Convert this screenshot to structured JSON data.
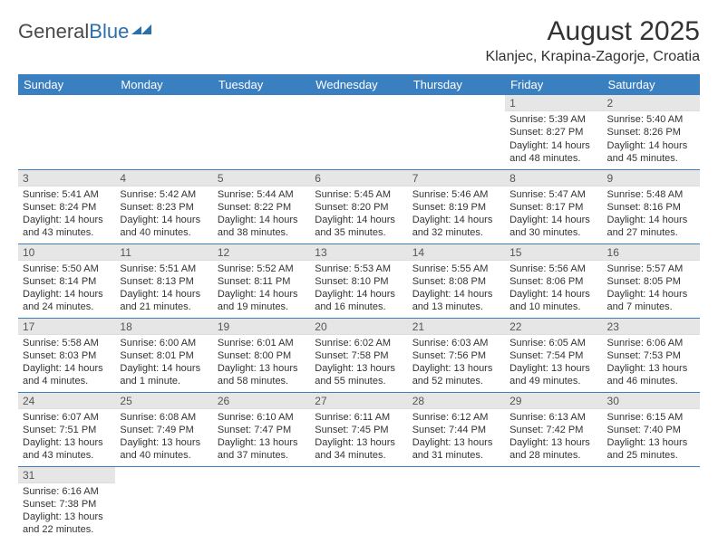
{
  "logo": {
    "text1": "General",
    "text2": "Blue"
  },
  "title": "August 2025",
  "location": "Klanjec, Krapina-Zagorje, Croatia",
  "colors": {
    "header_bg": "#3a7fc0",
    "header_fg": "#ffffff",
    "daynum_bg": "#e6e6e6",
    "row_divider": "#3a7fc0",
    "logo_gray": "#4a4a4a",
    "logo_blue": "#2b6fab",
    "text": "#333333"
  },
  "weekdays": [
    "Sunday",
    "Monday",
    "Tuesday",
    "Wednesday",
    "Thursday",
    "Friday",
    "Saturday"
  ],
  "weeks": [
    [
      null,
      null,
      null,
      null,
      null,
      {
        "n": "1",
        "sr": "Sunrise: 5:39 AM",
        "ss": "Sunset: 8:27 PM",
        "d1": "Daylight: 14 hours",
        "d2": "and 48 minutes."
      },
      {
        "n": "2",
        "sr": "Sunrise: 5:40 AM",
        "ss": "Sunset: 8:26 PM",
        "d1": "Daylight: 14 hours",
        "d2": "and 45 minutes."
      }
    ],
    [
      {
        "n": "3",
        "sr": "Sunrise: 5:41 AM",
        "ss": "Sunset: 8:24 PM",
        "d1": "Daylight: 14 hours",
        "d2": "and 43 minutes."
      },
      {
        "n": "4",
        "sr": "Sunrise: 5:42 AM",
        "ss": "Sunset: 8:23 PM",
        "d1": "Daylight: 14 hours",
        "d2": "and 40 minutes."
      },
      {
        "n": "5",
        "sr": "Sunrise: 5:44 AM",
        "ss": "Sunset: 8:22 PM",
        "d1": "Daylight: 14 hours",
        "d2": "and 38 minutes."
      },
      {
        "n": "6",
        "sr": "Sunrise: 5:45 AM",
        "ss": "Sunset: 8:20 PM",
        "d1": "Daylight: 14 hours",
        "d2": "and 35 minutes."
      },
      {
        "n": "7",
        "sr": "Sunrise: 5:46 AM",
        "ss": "Sunset: 8:19 PM",
        "d1": "Daylight: 14 hours",
        "d2": "and 32 minutes."
      },
      {
        "n": "8",
        "sr": "Sunrise: 5:47 AM",
        "ss": "Sunset: 8:17 PM",
        "d1": "Daylight: 14 hours",
        "d2": "and 30 minutes."
      },
      {
        "n": "9",
        "sr": "Sunrise: 5:48 AM",
        "ss": "Sunset: 8:16 PM",
        "d1": "Daylight: 14 hours",
        "d2": "and 27 minutes."
      }
    ],
    [
      {
        "n": "10",
        "sr": "Sunrise: 5:50 AM",
        "ss": "Sunset: 8:14 PM",
        "d1": "Daylight: 14 hours",
        "d2": "and 24 minutes."
      },
      {
        "n": "11",
        "sr": "Sunrise: 5:51 AM",
        "ss": "Sunset: 8:13 PM",
        "d1": "Daylight: 14 hours",
        "d2": "and 21 minutes."
      },
      {
        "n": "12",
        "sr": "Sunrise: 5:52 AM",
        "ss": "Sunset: 8:11 PM",
        "d1": "Daylight: 14 hours",
        "d2": "and 19 minutes."
      },
      {
        "n": "13",
        "sr": "Sunrise: 5:53 AM",
        "ss": "Sunset: 8:10 PM",
        "d1": "Daylight: 14 hours",
        "d2": "and 16 minutes."
      },
      {
        "n": "14",
        "sr": "Sunrise: 5:55 AM",
        "ss": "Sunset: 8:08 PM",
        "d1": "Daylight: 14 hours",
        "d2": "and 13 minutes."
      },
      {
        "n": "15",
        "sr": "Sunrise: 5:56 AM",
        "ss": "Sunset: 8:06 PM",
        "d1": "Daylight: 14 hours",
        "d2": "and 10 minutes."
      },
      {
        "n": "16",
        "sr": "Sunrise: 5:57 AM",
        "ss": "Sunset: 8:05 PM",
        "d1": "Daylight: 14 hours",
        "d2": "and 7 minutes."
      }
    ],
    [
      {
        "n": "17",
        "sr": "Sunrise: 5:58 AM",
        "ss": "Sunset: 8:03 PM",
        "d1": "Daylight: 14 hours",
        "d2": "and 4 minutes."
      },
      {
        "n": "18",
        "sr": "Sunrise: 6:00 AM",
        "ss": "Sunset: 8:01 PM",
        "d1": "Daylight: 14 hours",
        "d2": "and 1 minute."
      },
      {
        "n": "19",
        "sr": "Sunrise: 6:01 AM",
        "ss": "Sunset: 8:00 PM",
        "d1": "Daylight: 13 hours",
        "d2": "and 58 minutes."
      },
      {
        "n": "20",
        "sr": "Sunrise: 6:02 AM",
        "ss": "Sunset: 7:58 PM",
        "d1": "Daylight: 13 hours",
        "d2": "and 55 minutes."
      },
      {
        "n": "21",
        "sr": "Sunrise: 6:03 AM",
        "ss": "Sunset: 7:56 PM",
        "d1": "Daylight: 13 hours",
        "d2": "and 52 minutes."
      },
      {
        "n": "22",
        "sr": "Sunrise: 6:05 AM",
        "ss": "Sunset: 7:54 PM",
        "d1": "Daylight: 13 hours",
        "d2": "and 49 minutes."
      },
      {
        "n": "23",
        "sr": "Sunrise: 6:06 AM",
        "ss": "Sunset: 7:53 PM",
        "d1": "Daylight: 13 hours",
        "d2": "and 46 minutes."
      }
    ],
    [
      {
        "n": "24",
        "sr": "Sunrise: 6:07 AM",
        "ss": "Sunset: 7:51 PM",
        "d1": "Daylight: 13 hours",
        "d2": "and 43 minutes."
      },
      {
        "n": "25",
        "sr": "Sunrise: 6:08 AM",
        "ss": "Sunset: 7:49 PM",
        "d1": "Daylight: 13 hours",
        "d2": "and 40 minutes."
      },
      {
        "n": "26",
        "sr": "Sunrise: 6:10 AM",
        "ss": "Sunset: 7:47 PM",
        "d1": "Daylight: 13 hours",
        "d2": "and 37 minutes."
      },
      {
        "n": "27",
        "sr": "Sunrise: 6:11 AM",
        "ss": "Sunset: 7:45 PM",
        "d1": "Daylight: 13 hours",
        "d2": "and 34 minutes."
      },
      {
        "n": "28",
        "sr": "Sunrise: 6:12 AM",
        "ss": "Sunset: 7:44 PM",
        "d1": "Daylight: 13 hours",
        "d2": "and 31 minutes."
      },
      {
        "n": "29",
        "sr": "Sunrise: 6:13 AM",
        "ss": "Sunset: 7:42 PM",
        "d1": "Daylight: 13 hours",
        "d2": "and 28 minutes."
      },
      {
        "n": "30",
        "sr": "Sunrise: 6:15 AM",
        "ss": "Sunset: 7:40 PM",
        "d1": "Daylight: 13 hours",
        "d2": "and 25 minutes."
      }
    ],
    [
      {
        "n": "31",
        "sr": "Sunrise: 6:16 AM",
        "ss": "Sunset: 7:38 PM",
        "d1": "Daylight: 13 hours",
        "d2": "and 22 minutes."
      },
      null,
      null,
      null,
      null,
      null,
      null
    ]
  ]
}
